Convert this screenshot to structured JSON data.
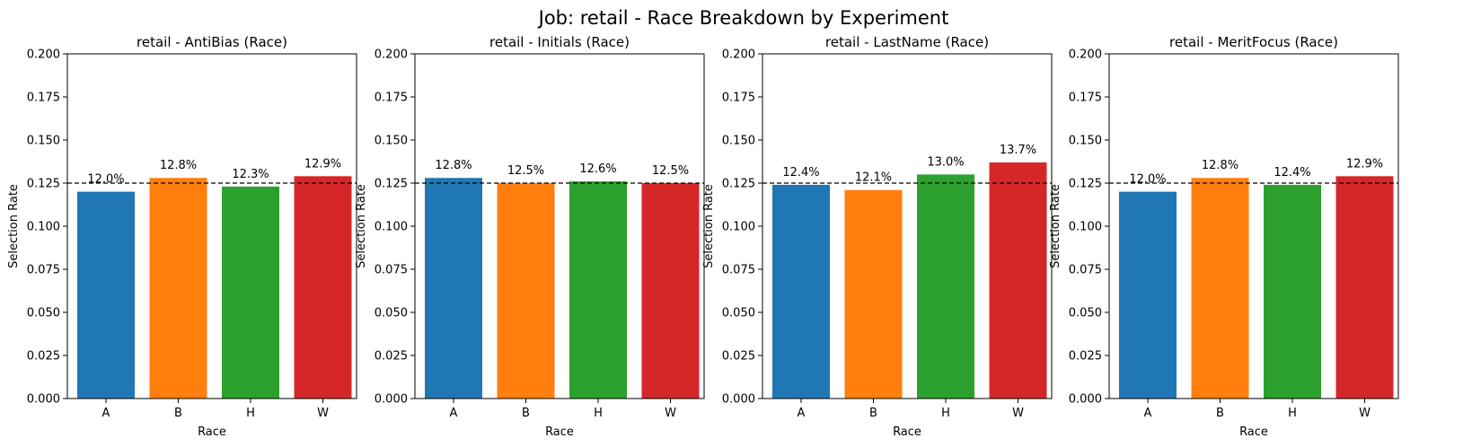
{
  "figure_title": "Job: retail - Race Breakdown by Experiment",
  "colors": {
    "A": "#1f77b4",
    "B": "#ff7f0e",
    "H": "#2ca02c",
    "W": "#d62728"
  },
  "chart_data": [
    {
      "type": "bar",
      "title": "retail - AntiBias (Race)",
      "xlabel": "Race",
      "ylabel": "Selection Rate",
      "categories": [
        "A",
        "B",
        "H",
        "W"
      ],
      "values": [
        0.12,
        0.128,
        0.123,
        0.129
      ],
      "data_labels": [
        "12.0%",
        "12.8%",
        "12.3%",
        "12.9%"
      ],
      "ylim": [
        0,
        0.2
      ],
      "yticks": [
        "0.000",
        "0.025",
        "0.050",
        "0.075",
        "0.100",
        "0.125",
        "0.150",
        "0.175",
        "0.200"
      ],
      "reference_line": 0.125,
      "grid": false
    },
    {
      "type": "bar",
      "title": "retail - Initials (Race)",
      "xlabel": "Race",
      "ylabel": "Selection Rate",
      "categories": [
        "A",
        "B",
        "H",
        "W"
      ],
      "values": [
        0.128,
        0.125,
        0.126,
        0.125
      ],
      "data_labels": [
        "12.8%",
        "12.5%",
        "12.6%",
        "12.5%"
      ],
      "ylim": [
        0,
        0.2
      ],
      "yticks": [
        "0.000",
        "0.025",
        "0.050",
        "0.075",
        "0.100",
        "0.125",
        "0.150",
        "0.175",
        "0.200"
      ],
      "reference_line": 0.125,
      "grid": false
    },
    {
      "type": "bar",
      "title": "retail - LastName (Race)",
      "xlabel": "Race",
      "ylabel": "Selection Rate",
      "categories": [
        "A",
        "B",
        "H",
        "W"
      ],
      "values": [
        0.124,
        0.121,
        0.13,
        0.137
      ],
      "data_labels": [
        "12.4%",
        "12.1%",
        "13.0%",
        "13.7%"
      ],
      "ylim": [
        0,
        0.2
      ],
      "yticks": [
        "0.000",
        "0.025",
        "0.050",
        "0.075",
        "0.100",
        "0.125",
        "0.150",
        "0.175",
        "0.200"
      ],
      "reference_line": 0.125,
      "grid": false
    },
    {
      "type": "bar",
      "title": "retail - MeritFocus (Race)",
      "xlabel": "Race",
      "ylabel": "Selection Rate",
      "categories": [
        "A",
        "B",
        "H",
        "W"
      ],
      "values": [
        0.12,
        0.128,
        0.124,
        0.129
      ],
      "data_labels": [
        "12.0%",
        "12.8%",
        "12.4%",
        "12.9%"
      ],
      "ylim": [
        0,
        0.2
      ],
      "yticks": [
        "0.000",
        "0.025",
        "0.050",
        "0.075",
        "0.100",
        "0.125",
        "0.150",
        "0.175",
        "0.200"
      ],
      "reference_line": 0.125,
      "grid": false
    }
  ]
}
